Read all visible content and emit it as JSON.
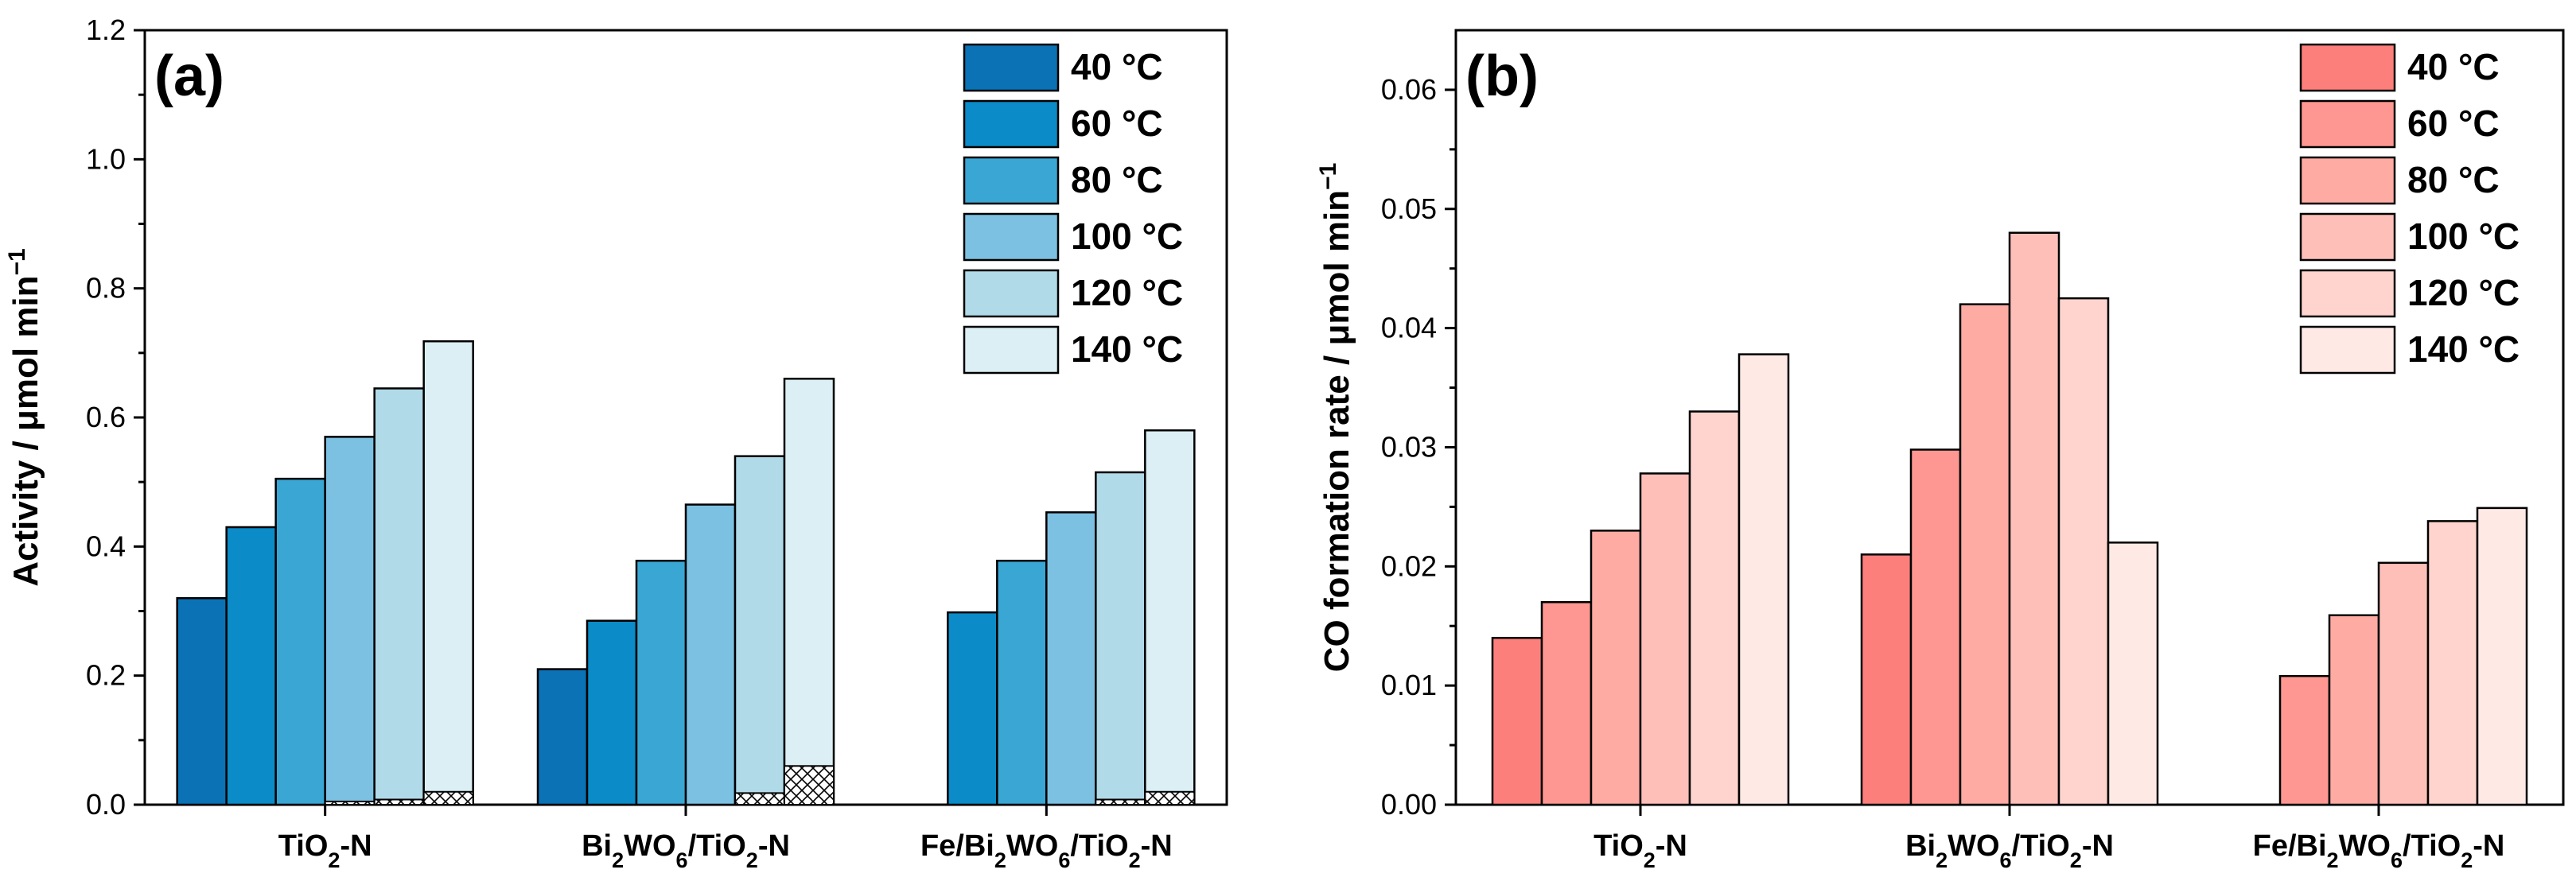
{
  "chart_data": [
    {
      "type": "bar",
      "panel_label": "(a)",
      "ylabel": "Activity / μmol min",
      "ylabel_sup": "−1",
      "ylim": [
        0,
        1.2
      ],
      "yticks": [
        "0.0",
        "0.2",
        "0.4",
        "0.6",
        "0.8",
        "1.0",
        "1.2"
      ],
      "categories": [
        {
          "main": "TiO",
          "sub": "2",
          "rest": "-N"
        },
        {
          "main": "Bi",
          "sub": "2",
          "mid": "WO",
          "sub2": "6",
          "mid2": "/TiO",
          "sub3": "2",
          "rest": "-N"
        },
        {
          "main": "Fe/Bi",
          "sub": "2",
          "mid": "WO",
          "sub2": "6",
          "mid2": "/TiO",
          "sub3": "2",
          "rest": "-N"
        }
      ],
      "series": [
        {
          "name": "40 °C",
          "color": "#0a72b5",
          "values": [
            0.32,
            0.21,
            null
          ],
          "hatched": [
            0,
            0,
            0
          ]
        },
        {
          "name": "60 °C",
          "color": "#0b8bc7",
          "values": [
            0.43,
            0.285,
            0.298
          ],
          "hatched": [
            0,
            0,
            0
          ]
        },
        {
          "name": "80 °C",
          "color": "#3aa6d4",
          "values": [
            0.505,
            0.378,
            0.378
          ],
          "hatched": [
            0,
            0,
            0
          ]
        },
        {
          "name": "100 °C",
          "color": "#7cc1e2",
          "values": [
            0.57,
            0.465,
            0.453
          ],
          "hatched": [
            0.005,
            0,
            0
          ]
        },
        {
          "name": "120 °C",
          "color": "#b1dae9",
          "values": [
            0.645,
            0.54,
            0.515
          ],
          "hatched": [
            0.008,
            0.018,
            0.008
          ]
        },
        {
          "name": "140 °C",
          "color": "#dbeff5",
          "values": [
            0.718,
            0.66,
            0.58
          ],
          "hatched": [
            0.02,
            0.06,
            0.02
          ]
        }
      ]
    },
    {
      "type": "bar",
      "panel_label": "(b)",
      "ylabel": "CO formation rate / μmol min",
      "ylabel_sup": "−1",
      "ylim": [
        0,
        0.065
      ],
      "yticks": [
        "0.00",
        "0.01",
        "0.02",
        "0.03",
        "0.04",
        "0.05",
        "0.06"
      ],
      "categories": [
        {
          "main": "TiO",
          "sub": "2",
          "rest": "-N"
        },
        {
          "main": "Bi",
          "sub": "2",
          "mid": "WO",
          "sub2": "6",
          "mid2": "/TiO",
          "sub3": "2",
          "rest": "-N"
        },
        {
          "main": "Fe/Bi",
          "sub": "2",
          "mid": "WO",
          "sub2": "6",
          "mid2": "/TiO",
          "sub3": "2",
          "rest": "-N"
        }
      ],
      "series": [
        {
          "name": "40 °C",
          "color": "#fd7f7c",
          "values": [
            0.014,
            0.021,
            null
          ]
        },
        {
          "name": "60 °C",
          "color": "#fe9791",
          "values": [
            0.017,
            0.0298,
            0.0108
          ]
        },
        {
          "name": "80 °C",
          "color": "#feaba4",
          "values": [
            0.023,
            0.042,
            0.0159
          ]
        },
        {
          "name": "100 °C",
          "color": "#ffbfb9",
          "values": [
            0.0278,
            0.048,
            0.0203
          ]
        },
        {
          "name": "120 °C",
          "color": "#ffd4ce",
          "values": [
            0.033,
            0.0425,
            0.0238
          ]
        },
        {
          "name": "140 °C",
          "color": "#fee9e5",
          "values": [
            0.0378,
            0.022,
            0.0249
          ]
        }
      ]
    }
  ]
}
